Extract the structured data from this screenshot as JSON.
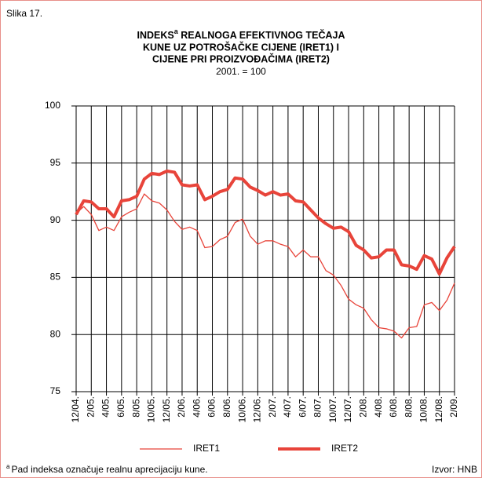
{
  "figure_label": "Slika 17.",
  "chart_data": {
    "type": "line",
    "title_start": "INDEKS",
    "title_sup": "a",
    "title_rest": " REALNOGA EFEKTIVNOG TEČAJA",
    "title_line2": "KUNE UZ POTROŠAČKE CIJENE (IRET1) I",
    "title_line3": "CIJENE PRI PROIZVOĐAČIMA (IRET2)",
    "subtitle": "2001. = 100",
    "categories": [
      "12/04.",
      null,
      "2/05.",
      null,
      "4/05.",
      null,
      "6/05.",
      null,
      "8/05.",
      null,
      "10/05.",
      null,
      "12/05.",
      null,
      "2/06.",
      null,
      "4/06.",
      null,
      "6/06.",
      null,
      "8/06.",
      null,
      "10/06.",
      null,
      "12/06.",
      null,
      "2/07.",
      null,
      "4/07.",
      null,
      "6/07.",
      null,
      "8/07.",
      null,
      "10/07.",
      null,
      "12/07.",
      null,
      "2/08.",
      null,
      "4/08.",
      null,
      "6/08.",
      null,
      "8/08.",
      null,
      "10/08.",
      null,
      "12/08.",
      null,
      "2/09."
    ],
    "series": [
      {
        "name": "IRET1",
        "color": "#e8443a",
        "width": 1.3,
        "values": [
          90.6,
          91.2,
          90.5,
          89.1,
          89.4,
          89.1,
          90.3,
          90.7,
          91.0,
          92.3,
          91.7,
          91.5,
          90.9,
          89.9,
          89.2,
          89.4,
          89.1,
          87.6,
          87.7,
          88.3,
          88.6,
          89.8,
          90.1,
          88.6,
          87.9,
          88.2,
          88.2,
          87.9,
          87.7,
          86.8,
          87.4,
          86.8,
          86.8,
          85.6,
          85.2,
          84.3,
          83.1,
          82.6,
          82.3,
          81.3,
          80.6,
          80.5,
          80.3,
          79.7,
          80.6,
          80.7,
          82.6,
          82.8,
          82.1,
          83.0,
          84.5
        ]
      },
      {
        "name": "IRET2",
        "color": "#e8443a",
        "width": 4,
        "values": [
          90.5,
          91.7,
          91.6,
          91.0,
          91.0,
          90.3,
          91.7,
          91.8,
          92.1,
          93.6,
          94.1,
          94.0,
          94.3,
          94.2,
          93.1,
          93.0,
          93.1,
          91.8,
          92.1,
          92.5,
          92.7,
          93.7,
          93.6,
          92.9,
          92.6,
          92.2,
          92.5,
          92.2,
          92.3,
          91.7,
          91.6,
          90.9,
          90.2,
          89.7,
          89.3,
          89.4,
          89.0,
          87.8,
          87.4,
          86.7,
          86.8,
          87.4,
          87.4,
          86.1,
          86.0,
          85.7,
          86.9,
          86.6,
          85.3,
          86.7,
          87.7
        ]
      }
    ],
    "ylim": [
      75,
      100
    ],
    "yticks": [
      75,
      80,
      85,
      90,
      95,
      100
    ],
    "grid": true
  },
  "footnote_sup": "a",
  "footnote": "Pad indeksa označuje realnu aprecijaciju kune.",
  "source": "Izvor: HNB"
}
